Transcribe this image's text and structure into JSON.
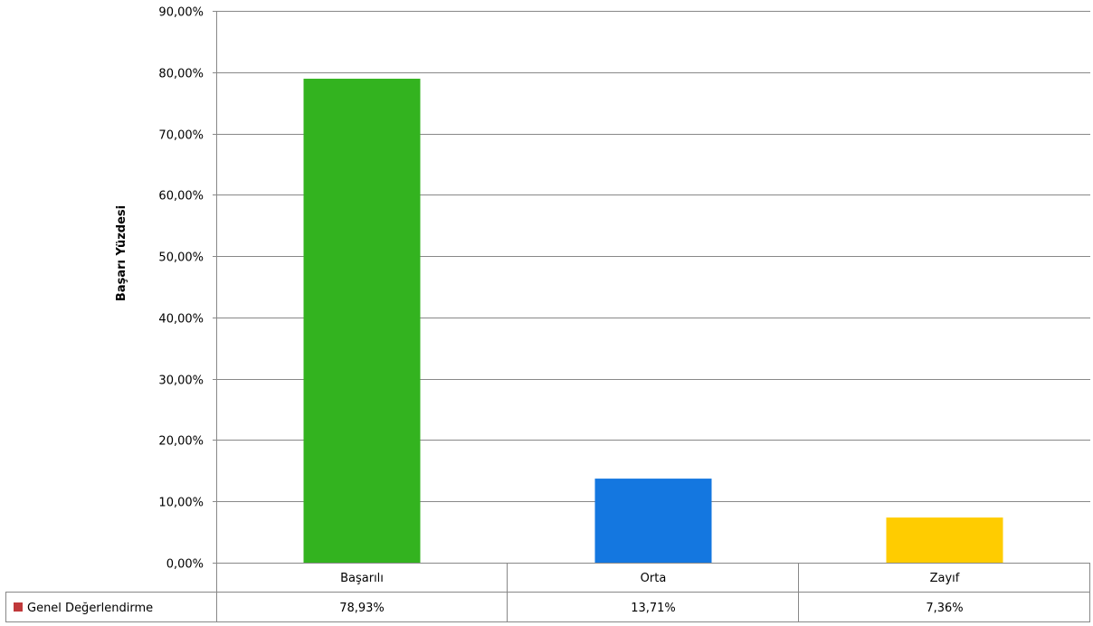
{
  "chart_data": {
    "type": "bar",
    "categories": [
      "Başarılı",
      "Orta",
      "Zayıf"
    ],
    "values": [
      78.93,
      13.71,
      7.36
    ],
    "value_labels": [
      "78,93%",
      "13,71%",
      "7,36%"
    ],
    "bar_colors": [
      "#33B31F",
      "#1477E0",
      "#FFCC00"
    ],
    "series": [
      {
        "name": "Genel Değerlendirme",
        "color": "#C0393B",
        "values": [
          78.93,
          13.71,
          7.36
        ]
      }
    ],
    "ylabel": "Başarı Yüzdesi",
    "ylim": [
      0,
      90
    ],
    "yticks": [
      0,
      10,
      20,
      30,
      40,
      50,
      60,
      70,
      80,
      90
    ],
    "ytick_labels": [
      "0,00%",
      "10,00%",
      "20,00%",
      "30,00%",
      "40,00%",
      "50,00%",
      "60,00%",
      "70,00%",
      "80,00%",
      "90,00%"
    ],
    "grid": true,
    "legend": "data-table"
  }
}
